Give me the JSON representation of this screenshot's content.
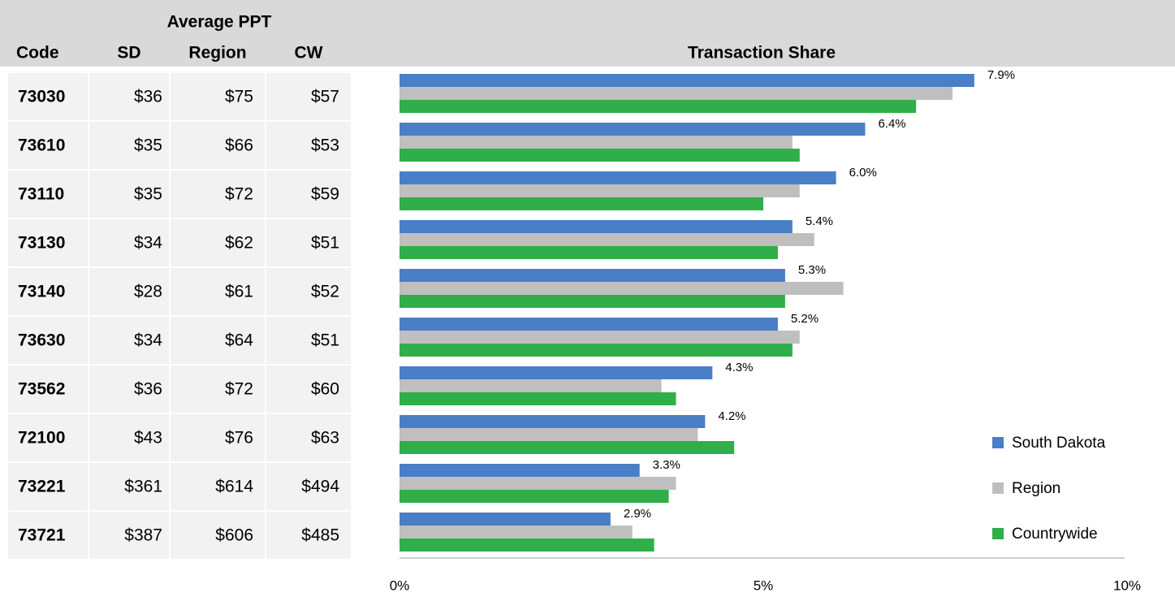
{
  "table": {
    "group_header": "Average PPT",
    "columns": [
      "Code",
      "SD",
      "Region",
      "CW"
    ],
    "rows": [
      [
        "73030",
        "$36",
        "$75",
        "$57"
      ],
      [
        "73610",
        "$35",
        "$66",
        "$53"
      ],
      [
        "73110",
        "$35",
        "$72",
        "$59"
      ],
      [
        "73130",
        "$34",
        "$62",
        "$51"
      ],
      [
        "73140",
        "$28",
        "$61",
        "$52"
      ],
      [
        "73630",
        "$34",
        "$64",
        "$51"
      ],
      [
        "73562",
        "$36",
        "$72",
        "$60"
      ],
      [
        "72100",
        "$43",
        "$76",
        "$63"
      ],
      [
        "73221",
        "$361",
        "$614",
        "$494"
      ],
      [
        "73721",
        "$387",
        "$606",
        "$485"
      ]
    ]
  },
  "chart_data": {
    "type": "barh",
    "title": "Transaction Share",
    "series": [
      {
        "name": "South Dakota",
        "color": "#4a7ec6",
        "values": [
          7.9,
          6.4,
          6.0,
          5.4,
          5.3,
          5.2,
          4.3,
          4.2,
          3.3,
          2.9
        ],
        "value_labels": [
          "7.9%",
          "6.4%",
          "6.0%",
          "5.4%",
          "5.3%",
          "5.2%",
          "4.3%",
          "4.2%",
          "3.3%",
          "2.9%"
        ]
      },
      {
        "name": "Region",
        "color": "#bfbfbf",
        "values": [
          7.6,
          5.4,
          5.5,
          5.7,
          6.1,
          5.5,
          3.6,
          4.1,
          3.8,
          3.2
        ]
      },
      {
        "name": "Countrywide",
        "color": "#2fae4a",
        "values": [
          7.1,
          5.5,
          5.0,
          5.2,
          5.3,
          5.4,
          3.8,
          4.6,
          3.7,
          3.5
        ]
      }
    ],
    "xlim": [
      0,
      10
    ],
    "xticks": [
      {
        "value": 0,
        "label": "0%"
      },
      {
        "value": 5,
        "label": "5%"
      },
      {
        "value": 10,
        "label": "10%"
      }
    ],
    "legend": "right"
  }
}
